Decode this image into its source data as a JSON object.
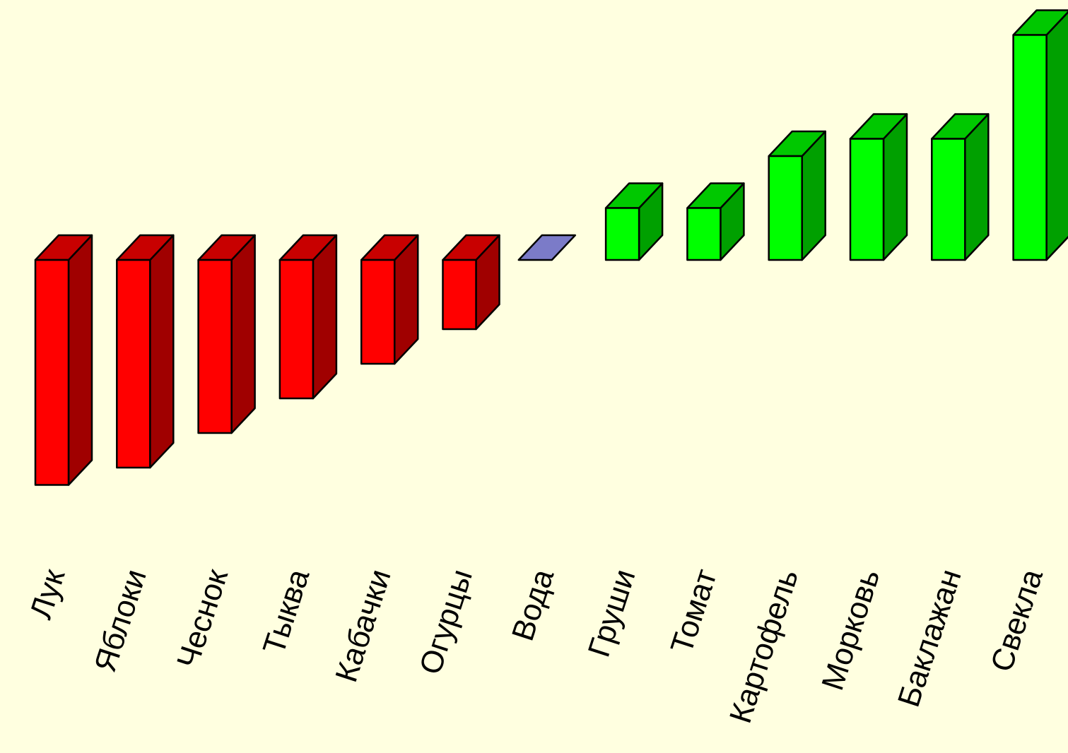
{
  "chart_data": {
    "type": "bar",
    "style": "3d",
    "categories": [
      "Лук",
      "Яблоки",
      "Чеснок",
      "Тыква",
      "Кабачки",
      "Огурцы",
      "Вода",
      "Груши",
      "Томат",
      "Картофель",
      "Морковь",
      "Баклажан",
      "Свекла"
    ],
    "values": [
      -13,
      -12,
      -10,
      -8,
      -6,
      -4,
      0,
      3,
      3,
      6,
      7,
      7,
      13
    ],
    "title": "",
    "xlabel": "",
    "ylabel": "",
    "ylim": [
      -13,
      13
    ],
    "grid": false,
    "legend": "none",
    "colors": {
      "background": "#ffffe0",
      "negative_face": "#ff0000",
      "negative_top": "#c80000",
      "negative_side": "#a00000",
      "zero": "#7b7bc8",
      "positive_face": "#00ff00",
      "positive_top": "#00c800",
      "positive_side": "#00a000",
      "outline": "#000000"
    }
  }
}
